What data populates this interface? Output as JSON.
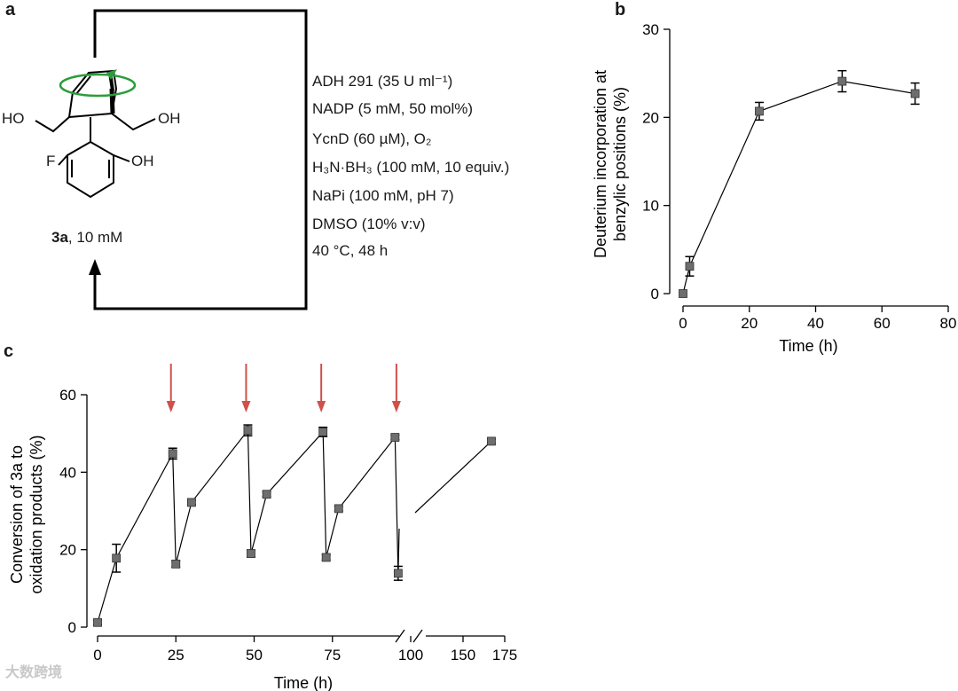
{
  "panel_labels": {
    "a": "a",
    "b": "b",
    "c": "c"
  },
  "reaction": {
    "compound_id": "3a",
    "compound_conc": ", 10 mM",
    "substituents": {
      "left_oh": "HO",
      "right_oh": "OH",
      "fluoro": "F",
      "phenol_oh": "OH"
    },
    "conditions": [
      "ADH 291 (35 U ml⁻¹)",
      "NADP (5 mM, 50 mol%)",
      "YcnD (60 µM), O₂",
      "H₃N·BH₃ (100 mM, 10 equiv.)",
      "NaPi (100 mM, pH 7)",
      "DMSO (10% v:v)",
      "40 °C, 48 h"
    ]
  },
  "chart_data": [
    {
      "panel": "b",
      "type": "line",
      "xlabel": "Time (h)",
      "ylabel_line1": "Deuterium incorporation at",
      "ylabel_line2": "benzylic positions (%)",
      "xlim": [
        0,
        80
      ],
      "ylim": [
        0,
        30
      ],
      "xticks": [
        "0",
        "20",
        "40",
        "60",
        "80"
      ],
      "yticks": [
        "0",
        "10",
        "20",
        "30"
      ],
      "x": [
        0,
        2,
        23,
        48,
        70
      ],
      "y": [
        0,
        3.1,
        20.7,
        24.1,
        22.7
      ],
      "err": [
        0,
        1.1,
        1.0,
        1.2,
        1.2
      ]
    },
    {
      "panel": "c",
      "type": "line",
      "xlabel": "Time (h)",
      "ylabel_line1": "Conversion of 3a to",
      "ylabel_line2": "oxidation products (%)",
      "ylim": [
        0,
        60
      ],
      "yticks": [
        "0",
        "20",
        "40",
        "60"
      ],
      "xticks": [
        "0",
        "25",
        "50",
        "75",
        "100",
        "150",
        "175"
      ],
      "axis_break": [
        110,
        130
      ],
      "x": [
        0,
        6,
        24,
        25,
        30,
        48,
        49,
        54,
        72,
        73,
        77,
        95,
        96,
        167
      ],
      "y": [
        1.2,
        17.8,
        44.8,
        16.3,
        32.2,
        50.8,
        19.0,
        34.3,
        50.4,
        18.0,
        30.6,
        49.0,
        13.9,
        48.0
      ],
      "err": [
        0.6,
        3.6,
        1.4,
        0.8,
        0.6,
        1.4,
        0.9,
        0.6,
        1.2,
        0.7,
        0.6,
        0.6,
        1.8,
        0.6
      ],
      "additions_h": [
        24,
        48,
        72,
        96
      ],
      "annotation_color": "#d0504a"
    }
  ],
  "watermark": "大数跨境"
}
